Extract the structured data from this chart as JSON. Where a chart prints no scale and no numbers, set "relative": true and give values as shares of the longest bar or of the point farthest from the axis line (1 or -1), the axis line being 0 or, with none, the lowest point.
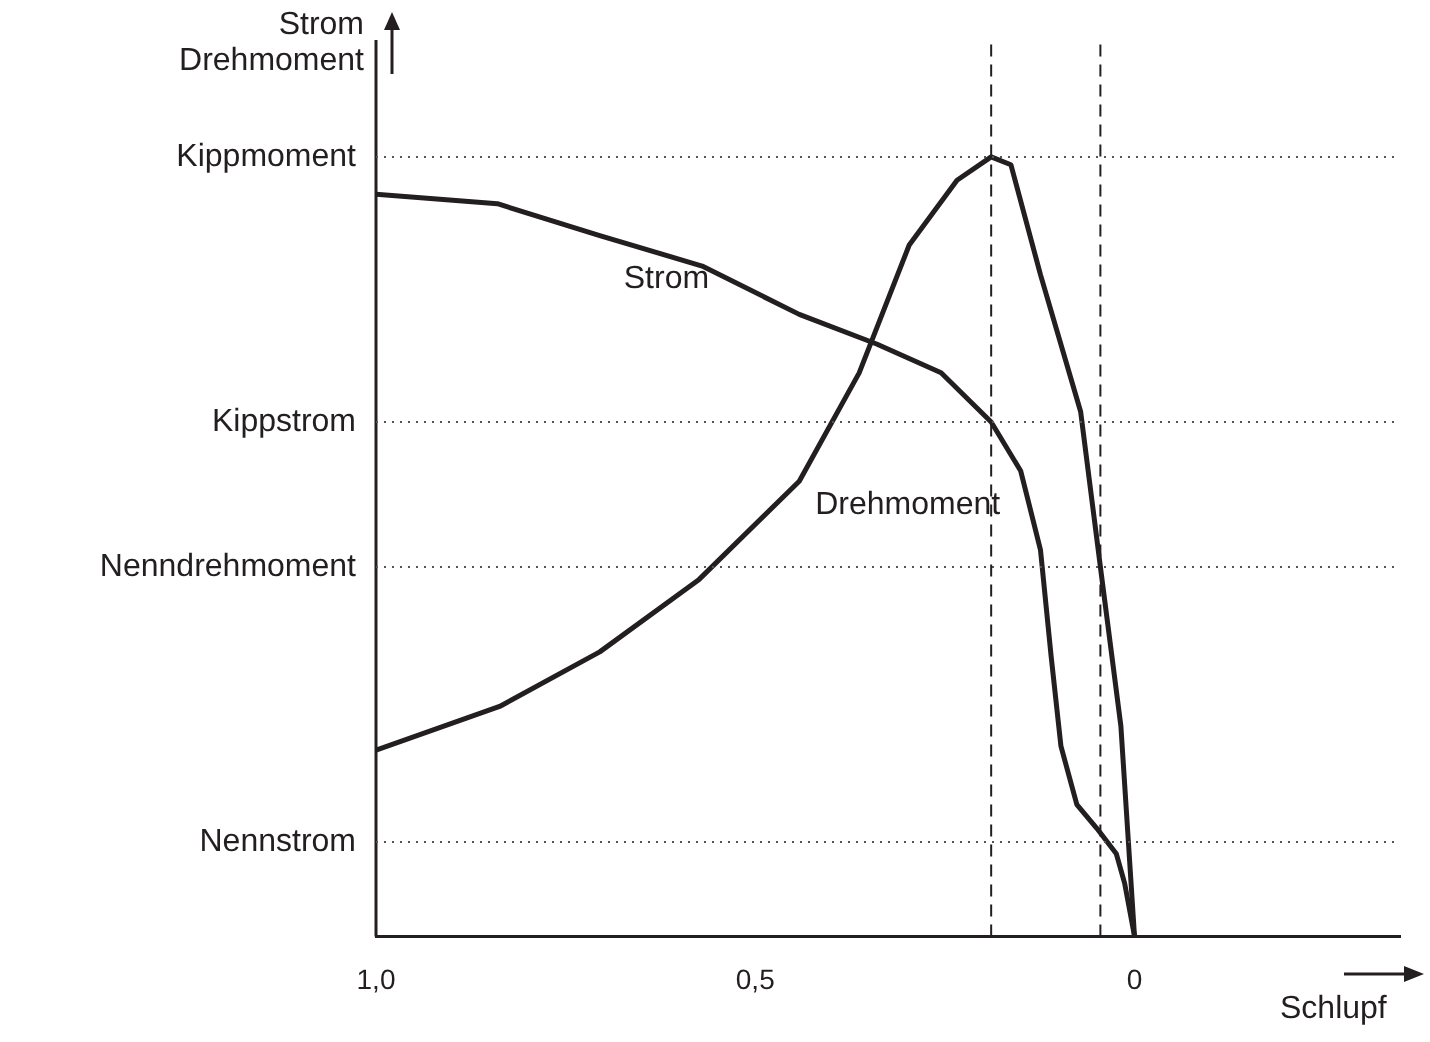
{
  "chart_data": {
    "type": "line",
    "relative": true,
    "xlabel": "Schlupf",
    "ylabel": "Strom Drehmoment",
    "xlim": [
      1.0,
      -0.35
    ],
    "xticks": [
      {
        "value": 1,
        "label": "1,0"
      },
      {
        "value": 0.5,
        "label": "0,5"
      },
      {
        "value": 0,
        "label": "0"
      }
    ],
    "grid": false,
    "legend": false,
    "marker": "none",
    "line_style": "solid",
    "series": [
      {
        "name": "Strom",
        "color": "#231f20",
        "x": [
          1.0,
          0.84,
          0.705,
          0.57,
          0.442,
          0.34,
          0.255,
          0.189,
          0.15,
          0.124,
          0.11,
          0.097,
          0.076,
          0.05,
          0.024,
          0.013,
          0
        ],
        "values": [
          0.952,
          0.94,
          0.899,
          0.86,
          0.798,
          0.76,
          0.723,
          0.66,
          0.597,
          0.496,
          0.36,
          0.244,
          0.169,
          0.139,
          0.106,
          0.068,
          0
        ]
      },
      {
        "name": "Drehmoment",
        "color": "#231f20",
        "x": [
          1.0,
          0.837,
          0.705,
          0.574,
          0.442,
          0.363,
          0.297,
          0.234,
          0.189,
          0.163,
          0.124,
          0.071,
          0.045,
          0.018,
          0
        ],
        "values": [
          0.239,
          0.295,
          0.365,
          0.458,
          0.584,
          0.723,
          0.887,
          0.97,
          1.0,
          0.99,
          0.849,
          0.673,
          0.474,
          0.27,
          0
        ]
      }
    ],
    "ref_lines": [
      {
        "axis": "y",
        "value": 1.0,
        "label": "Kippmoment",
        "line_style": "dotted",
        "color": "#555555"
      },
      {
        "axis": "y",
        "value": 0.66,
        "label": "Kippstrom",
        "line_style": "dotted",
        "color": "#555555"
      },
      {
        "axis": "y",
        "value": 0.474,
        "label": "Nenndrehmoment",
        "line_style": "dotted",
        "color": "#555555"
      },
      {
        "axis": "y",
        "value": 0.121,
        "label": "Nennstrom",
        "line_style": "dotted",
        "color": "#555555"
      },
      {
        "axis": "x",
        "value": 0.189,
        "line_style": "dashed",
        "color": "#231f20"
      },
      {
        "axis": "x",
        "value": 0.045,
        "line_style": "dashed",
        "color": "#231f20"
      }
    ]
  }
}
